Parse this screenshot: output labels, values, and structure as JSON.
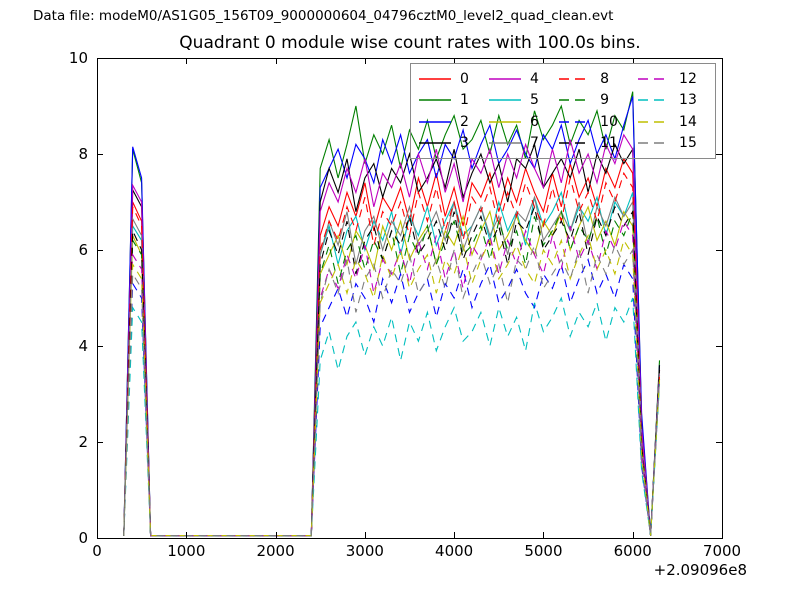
{
  "header": {
    "data_file_label": "Data file: modeM0/AS1G05_156T09_9000000604_04796cztM0_level2_quad_clean.evt"
  },
  "chart_data": {
    "type": "line",
    "title": "Quadrant 0 module wise count rates with 100.0s bins.",
    "xlabel": "",
    "ylabel": "",
    "xlim": [
      0,
      7000
    ],
    "ylim": [
      0,
      10
    ],
    "xticks": [
      0,
      1000,
      2000,
      3000,
      4000,
      5000,
      6000,
      7000
    ],
    "yticks": [
      0,
      2,
      4,
      6,
      8,
      10
    ],
    "x_offset_label": "+2.09096e8",
    "bin_seconds": 100.0,
    "grid": false,
    "legend": {
      "location": "upper right",
      "columns": 4,
      "order": "column-major"
    },
    "x": [
      300,
      400,
      500,
      600,
      700,
      800,
      900,
      1000,
      1100,
      1200,
      1300,
      1400,
      1500,
      1600,
      1700,
      1800,
      1900,
      2000,
      2100,
      2200,
      2300,
      2400,
      2500,
      2600,
      2700,
      2800,
      2900,
      3000,
      3100,
      3200,
      3300,
      3400,
      3500,
      3600,
      3700,
      3800,
      3900,
      4000,
      4100,
      4200,
      4300,
      4400,
      4500,
      4600,
      4700,
      4800,
      4900,
      5000,
      5100,
      5200,
      5300,
      5400,
      5500,
      5600,
      5700,
      5800,
      5900,
      6000,
      6100,
      6200,
      6300
    ],
    "series": [
      {
        "name": "0",
        "color": "#ff0000",
        "linestyle": "solid",
        "y": [
          0.05,
          7.0,
          6.6,
          0.05,
          0.05,
          0.05,
          0.05,
          0.05,
          0.05,
          0.05,
          0.05,
          0.05,
          0.05,
          0.05,
          0.05,
          0.05,
          0.05,
          0.05,
          0.05,
          0.05,
          0.05,
          0.05,
          6.3,
          6.9,
          6.5,
          7.2,
          6.7,
          7.4,
          6.4,
          7.1,
          6.8,
          7.3,
          6.6,
          7.5,
          6.9,
          7.6,
          6.7,
          7.3,
          6.5,
          7.4,
          7.1,
          7.6,
          6.8,
          7.5,
          7.0,
          7.7,
          7.2,
          6.8,
          7.6,
          6.9,
          7.8,
          7.1,
          7.5,
          6.9,
          7.7,
          7.3,
          7.9,
          7.6,
          2.1,
          0.05,
          3.5
        ]
      },
      {
        "name": "1",
        "color": "#007f00",
        "linestyle": "solid",
        "y": [
          0.05,
          8.1,
          7.4,
          0.05,
          0.05,
          0.05,
          0.05,
          0.05,
          0.05,
          0.05,
          0.05,
          0.05,
          0.05,
          0.05,
          0.05,
          0.05,
          0.05,
          0.05,
          0.05,
          0.05,
          0.05,
          0.05,
          7.7,
          8.3,
          7.5,
          8.2,
          9.0,
          7.8,
          8.4,
          8.0,
          8.6,
          7.7,
          8.5,
          8.1,
          8.7,
          7.9,
          8.4,
          8.8,
          8.1,
          8.3,
          8.7,
          8.0,
          8.8,
          8.2,
          8.6,
          7.9,
          8.9,
          8.3,
          8.6,
          9.0,
          8.2,
          8.7,
          8.4,
          8.9,
          8.1,
          8.8,
          8.5,
          9.3,
          2.5,
          0.05,
          3.7
        ]
      },
      {
        "name": "2",
        "color": "#0000ff",
        "linestyle": "solid",
        "y": [
          0.05,
          8.15,
          7.5,
          0.05,
          0.05,
          0.05,
          0.05,
          0.05,
          0.05,
          0.05,
          0.05,
          0.05,
          0.05,
          0.05,
          0.05,
          0.05,
          0.05,
          0.05,
          0.05,
          0.05,
          0.05,
          0.05,
          7.3,
          7.7,
          8.1,
          7.5,
          8.2,
          7.9,
          7.4,
          8.3,
          7.8,
          8.4,
          7.6,
          8.0,
          8.3,
          7.5,
          8.2,
          7.9,
          8.5,
          7.7,
          8.2,
          8.6,
          7.8,
          8.1,
          8.5,
          8.0,
          7.7,
          8.4,
          8.1,
          8.6,
          7.8,
          8.3,
          8.7,
          8.0,
          8.4,
          7.9,
          8.6,
          9.2,
          2.6,
          0.05,
          3.6
        ]
      },
      {
        "name": "3",
        "color": "#000000",
        "linestyle": "solid",
        "y": [
          0.05,
          7.25,
          6.9,
          0.05,
          0.05,
          0.05,
          0.05,
          0.05,
          0.05,
          0.05,
          0.05,
          0.05,
          0.05,
          0.05,
          0.05,
          0.05,
          0.05,
          0.05,
          0.05,
          0.05,
          0.05,
          0.05,
          7.0,
          7.7,
          7.2,
          7.9,
          6.8,
          7.5,
          7.8,
          7.1,
          7.7,
          7.4,
          8.0,
          7.2,
          7.5,
          7.9,
          7.3,
          8.1,
          7.1,
          7.6,
          8.0,
          7.4,
          7.8,
          7.0,
          7.9,
          7.7,
          8.2,
          7.3,
          7.6,
          7.9,
          7.5,
          8.1,
          7.2,
          8.0,
          7.6,
          8.2,
          7.8,
          8.1,
          2.3,
          0.05,
          3.6
        ]
      },
      {
        "name": "4",
        "color": "#bf00bf",
        "linestyle": "solid",
        "y": [
          0.05,
          7.35,
          7.0,
          0.05,
          0.05,
          0.05,
          0.05,
          0.05,
          0.05,
          0.05,
          0.05,
          0.05,
          0.05,
          0.05,
          0.05,
          0.05,
          0.05,
          0.05,
          0.05,
          0.05,
          0.05,
          0.05,
          6.8,
          7.4,
          7.0,
          7.7,
          7.2,
          7.9,
          6.9,
          7.6,
          7.3,
          7.8,
          7.1,
          8.0,
          7.4,
          8.1,
          7.2,
          7.8,
          7.0,
          7.9,
          7.6,
          8.1,
          7.3,
          8.0,
          7.5,
          8.2,
          7.7,
          7.3,
          8.1,
          7.4,
          8.3,
          7.6,
          8.0,
          7.4,
          8.2,
          7.8,
          8.4,
          8.1,
          2.3,
          0.05,
          3.5
        ]
      },
      {
        "name": "5",
        "color": "#00bfbf",
        "linestyle": "solid",
        "y": [
          0.05,
          6.5,
          6.2,
          0.05,
          0.05,
          0.05,
          0.05,
          0.05,
          0.05,
          0.05,
          0.05,
          0.05,
          0.05,
          0.05,
          0.05,
          0.05,
          0.05,
          0.05,
          0.05,
          0.05,
          0.05,
          0.05,
          5.9,
          6.5,
          5.7,
          6.4,
          6.7,
          6.0,
          6.6,
          6.2,
          6.8,
          5.9,
          6.7,
          6.3,
          6.9,
          6.1,
          6.6,
          7.0,
          6.3,
          6.5,
          6.9,
          6.2,
          7.0,
          6.4,
          6.8,
          6.1,
          7.1,
          6.5,
          6.8,
          7.2,
          6.4,
          6.9,
          6.6,
          7.1,
          6.3,
          7.0,
          6.7,
          7.2,
          2.0,
          0.05,
          3.4
        ]
      },
      {
        "name": "6",
        "color": "#bfbf00",
        "linestyle": "solid",
        "y": [
          0.05,
          6.3,
          5.9,
          0.05,
          0.05,
          0.05,
          0.05,
          0.05,
          0.05,
          0.05,
          0.05,
          0.05,
          0.05,
          0.05,
          0.05,
          0.05,
          0.05,
          0.05,
          0.05,
          0.05,
          0.05,
          0.05,
          5.5,
          5.9,
          6.3,
          5.7,
          6.4,
          6.1,
          5.6,
          6.5,
          6.0,
          6.6,
          5.8,
          6.2,
          6.5,
          5.7,
          6.4,
          6.1,
          6.7,
          5.9,
          6.4,
          6.8,
          6.0,
          6.3,
          6.7,
          6.2,
          5.9,
          6.6,
          6.3,
          6.8,
          6.0,
          6.5,
          6.9,
          6.2,
          6.6,
          6.1,
          6.8,
          6.5,
          1.8,
          0.05,
          3.4
        ]
      },
      {
        "name": "7",
        "color": "#7f7f7f",
        "linestyle": "solid",
        "y": [
          0.05,
          6.65,
          6.3,
          0.05,
          0.05,
          0.05,
          0.05,
          0.05,
          0.05,
          0.05,
          0.05,
          0.05,
          0.05,
          0.05,
          0.05,
          0.05,
          0.05,
          0.05,
          0.05,
          0.05,
          0.05,
          0.05,
          5.9,
          6.6,
          6.1,
          6.8,
          5.7,
          6.4,
          6.7,
          6.0,
          6.6,
          6.3,
          6.9,
          6.1,
          6.4,
          6.8,
          6.2,
          7.0,
          6.0,
          6.5,
          6.9,
          6.3,
          6.7,
          5.9,
          6.8,
          6.6,
          7.1,
          6.2,
          6.5,
          6.8,
          6.4,
          7.0,
          6.1,
          6.9,
          6.5,
          7.1,
          6.7,
          7.0,
          2.0,
          0.05,
          3.5
        ]
      },
      {
        "name": "8",
        "color": "#ff0000",
        "linestyle": "dashed",
        "y": [
          0.05,
          6.9,
          6.5,
          0.05,
          0.05,
          0.05,
          0.05,
          0.05,
          0.05,
          0.05,
          0.05,
          0.05,
          0.05,
          0.05,
          0.05,
          0.05,
          0.05,
          0.05,
          0.05,
          0.05,
          0.05,
          0.05,
          6.0,
          6.6,
          6.2,
          6.9,
          6.4,
          7.1,
          6.1,
          6.8,
          6.5,
          7.0,
          6.3,
          7.2,
          6.6,
          7.3,
          6.4,
          7.0,
          6.2,
          7.1,
          6.8,
          7.3,
          6.5,
          7.2,
          6.7,
          7.4,
          6.9,
          6.5,
          7.3,
          6.6,
          7.5,
          6.8,
          7.2,
          6.6,
          7.4,
          7.0,
          7.6,
          7.3,
          2.0,
          0.05,
          3.4
        ]
      },
      {
        "name": "9",
        "color": "#007f00",
        "linestyle": "dashed",
        "y": [
          0.05,
          6.2,
          5.9,
          0.05,
          0.05,
          0.05,
          0.05,
          0.05,
          0.05,
          0.05,
          0.05,
          0.05,
          0.05,
          0.05,
          0.05,
          0.05,
          0.05,
          0.05,
          0.05,
          0.05,
          0.05,
          0.05,
          5.5,
          6.1,
          5.3,
          6.0,
          6.3,
          5.6,
          6.2,
          5.8,
          6.4,
          5.5,
          6.3,
          5.9,
          6.5,
          5.7,
          6.2,
          6.6,
          5.9,
          6.1,
          6.5,
          5.8,
          6.6,
          6.0,
          6.4,
          5.7,
          6.7,
          6.1,
          6.4,
          6.8,
          6.0,
          6.5,
          6.2,
          6.7,
          5.9,
          6.6,
          6.3,
          6.8,
          1.9,
          0.05,
          3.3
        ]
      },
      {
        "name": "10",
        "color": "#0000ff",
        "linestyle": "dashed",
        "y": [
          0.05,
          5.3,
          5.0,
          0.05,
          0.05,
          0.05,
          0.05,
          0.05,
          0.05,
          0.05,
          0.05,
          0.05,
          0.05,
          0.05,
          0.05,
          0.05,
          0.05,
          0.05,
          0.05,
          0.05,
          0.05,
          0.05,
          4.4,
          4.8,
          5.2,
          4.6,
          5.3,
          5.0,
          4.5,
          5.4,
          4.9,
          5.5,
          4.7,
          5.1,
          5.4,
          4.6,
          5.3,
          5.0,
          5.6,
          4.8,
          5.3,
          5.7,
          4.9,
          5.2,
          5.6,
          5.1,
          4.8,
          5.5,
          5.2,
          5.7,
          4.9,
          5.4,
          5.8,
          5.1,
          5.5,
          5.0,
          5.7,
          5.4,
          1.5,
          0.05,
          3.3
        ]
      },
      {
        "name": "11",
        "color": "#000000",
        "linestyle": "dashed",
        "y": [
          0.05,
          6.4,
          6.0,
          0.05,
          0.05,
          0.05,
          0.05,
          0.05,
          0.05,
          0.05,
          0.05,
          0.05,
          0.05,
          0.05,
          0.05,
          0.05,
          0.05,
          0.05,
          0.05,
          0.05,
          0.05,
          0.05,
          5.7,
          6.4,
          5.9,
          6.6,
          5.5,
          6.2,
          6.5,
          5.8,
          6.4,
          6.1,
          6.7,
          5.9,
          6.2,
          6.6,
          6.0,
          6.8,
          5.8,
          6.3,
          6.7,
          6.1,
          6.5,
          5.7,
          6.6,
          6.4,
          6.9,
          6.0,
          6.3,
          6.6,
          6.2,
          6.8,
          5.9,
          6.7,
          6.3,
          6.9,
          6.5,
          6.8,
          1.9,
          0.05,
          3.5
        ]
      },
      {
        "name": "12",
        "color": "#bf00bf",
        "linestyle": "dashed",
        "y": [
          0.05,
          5.9,
          5.6,
          0.05,
          0.05,
          0.05,
          0.05,
          0.05,
          0.05,
          0.05,
          0.05,
          0.05,
          0.05,
          0.05,
          0.05,
          0.05,
          0.05,
          0.05,
          0.05,
          0.05,
          0.05,
          0.05,
          5.0,
          5.6,
          5.2,
          5.9,
          5.4,
          6.1,
          5.1,
          5.8,
          5.5,
          6.0,
          5.3,
          6.2,
          5.6,
          6.3,
          5.4,
          6.0,
          5.2,
          6.1,
          5.8,
          6.3,
          5.5,
          6.2,
          5.7,
          6.4,
          5.9,
          5.5,
          6.3,
          5.6,
          6.5,
          5.8,
          6.2,
          5.6,
          6.4,
          6.0,
          6.6,
          6.3,
          1.8,
          0.05,
          3.4
        ]
      },
      {
        "name": "13",
        "color": "#00bfbf",
        "linestyle": "dashed",
        "y": [
          0.05,
          4.8,
          4.5,
          0.05,
          0.05,
          0.05,
          0.05,
          0.05,
          0.05,
          0.05,
          0.05,
          0.05,
          0.05,
          0.05,
          0.05,
          0.05,
          0.05,
          0.05,
          0.05,
          0.05,
          0.05,
          0.05,
          3.7,
          4.3,
          3.5,
          4.2,
          4.5,
          3.8,
          4.4,
          4.0,
          4.6,
          3.7,
          4.5,
          4.1,
          4.7,
          3.9,
          4.4,
          4.8,
          4.1,
          4.3,
          4.7,
          4.0,
          4.8,
          4.2,
          4.6,
          3.9,
          4.9,
          4.3,
          4.6,
          5.0,
          4.2,
          4.7,
          4.4,
          4.9,
          4.1,
          4.8,
          4.5,
          5.0,
          1.4,
          0.05,
          3.2
        ]
      },
      {
        "name": "14",
        "color": "#bfbf00",
        "linestyle": "dashed",
        "y": [
          0.05,
          5.7,
          5.4,
          0.05,
          0.05,
          0.05,
          0.05,
          0.05,
          0.05,
          0.05,
          0.05,
          0.05,
          0.05,
          0.05,
          0.05,
          0.05,
          0.05,
          0.05,
          0.05,
          0.05,
          0.05,
          0.05,
          4.9,
          5.3,
          5.7,
          5.1,
          5.8,
          5.5,
          5.0,
          5.9,
          5.4,
          6.0,
          5.2,
          5.6,
          5.9,
          5.1,
          5.8,
          5.5,
          6.1,
          5.3,
          5.8,
          6.2,
          5.4,
          5.7,
          6.1,
          5.6,
          5.3,
          6.0,
          5.7,
          6.2,
          5.4,
          5.9,
          6.3,
          5.6,
          6.0,
          5.5,
          6.2,
          5.9,
          1.7,
          0.05,
          3.3
        ]
      },
      {
        "name": "15",
        "color": "#7f7f7f",
        "linestyle": "dashed",
        "y": [
          0.05,
          5.5,
          5.2,
          0.05,
          0.05,
          0.05,
          0.05,
          0.05,
          0.05,
          0.05,
          0.05,
          0.05,
          0.05,
          0.05,
          0.05,
          0.05,
          0.05,
          0.05,
          0.05,
          0.05,
          0.05,
          0.05,
          4.9,
          5.6,
          5.1,
          5.8,
          4.7,
          5.4,
          5.7,
          5.0,
          5.6,
          5.3,
          5.9,
          5.1,
          5.4,
          5.8,
          5.2,
          6.0,
          5.0,
          5.5,
          5.9,
          5.3,
          5.7,
          4.9,
          5.8,
          5.6,
          6.1,
          5.2,
          5.5,
          5.8,
          5.4,
          6.0,
          5.1,
          5.9,
          5.5,
          6.1,
          5.7,
          6.0,
          1.6,
          0.05,
          3.3
        ]
      }
    ]
  }
}
